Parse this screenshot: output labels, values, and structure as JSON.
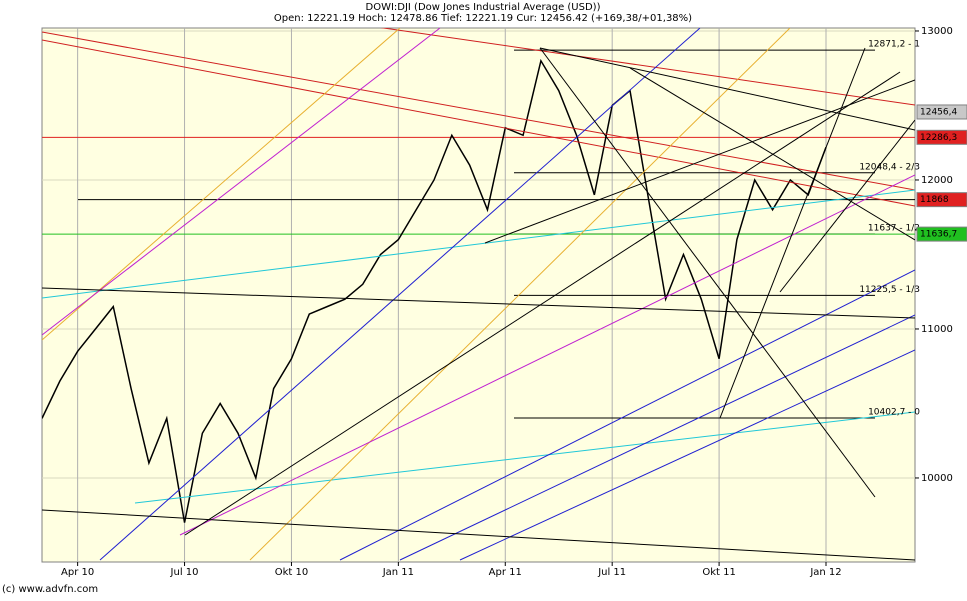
{
  "chart_data": {
    "type": "line",
    "title": "DOWI:DJI (Dow Jones Industrial Average (USD))",
    "subtitle": "Open: 12221.19 Hoch: 12478.86 Tief: 12221.19 Cur: 12456.42 (+169,38/+01,38%)",
    "footer": "(c) www.advfn.com",
    "categories": [
      null,
      null,
      "Apr 10",
      null,
      null,
      null,
      null,
      null,
      "Jul 10",
      null,
      null,
      null,
      null,
      null,
      "Okt 10",
      null,
      null,
      null,
      null,
      null,
      "Jan 11",
      null,
      null,
      null,
      null,
      null,
      "Apr 11",
      null,
      null,
      null,
      null,
      null,
      "Jul 11",
      null,
      null,
      null,
      null,
      null,
      "Okt 11",
      null,
      null,
      null,
      null,
      null,
      "Jan 12"
    ],
    "series": [
      {
        "name": "DOWI:DJI",
        "color": "#000000",
        "values": [
          10400,
          10650,
          10850,
          11000,
          11150,
          10600,
          10100,
          10400,
          9700,
          10300,
          10500,
          10300,
          10000,
          10600,
          10800,
          11100,
          11150,
          11200,
          11300,
          11500,
          11600,
          11800,
          12000,
          12300,
          12100,
          11800,
          12350,
          12300,
          12800,
          12600,
          12300,
          11900,
          12500,
          12600,
          11900,
          11200,
          11500,
          11200,
          10800,
          11600,
          12000,
          11800,
          12000,
          11900,
          12220
        ]
      }
    ],
    "ylim": [
      9436,
      13020
    ],
    "yticks": [
      10000,
      11000,
      12000,
      13000
    ],
    "grid": true,
    "levels": [
      {
        "value": 12456.4,
        "label": "12456,4",
        "color": "#c8c8c8"
      },
      {
        "value": 12286.3,
        "label": "12286,3",
        "color": "#e02020"
      },
      {
        "value": 11868,
        "label": "11868",
        "color": "#e02020"
      },
      {
        "value": 11636.7,
        "label": "11636,7",
        "color": "#20c020"
      }
    ],
    "fib_levels": [
      {
        "value": 12871.2,
        "label": "12871,2 - 1"
      },
      {
        "value": 12048.4,
        "label": "12048,4 - 2/3"
      },
      {
        "value": 11637,
        "label": "11637 - 1/2"
      },
      {
        "value": 11225.5,
        "label": "11225,5 - 1/3"
      },
      {
        "value": 10402.7,
        "label": "10402,7 - 0"
      }
    ]
  }
}
